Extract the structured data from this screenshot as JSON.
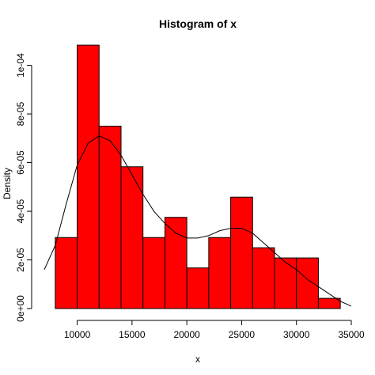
{
  "chart_data": {
    "type": "histogram",
    "title": "Histogram of x",
    "xlabel": "x",
    "ylabel": "Density",
    "xlim": [
      7000,
      35000
    ],
    "ylim": [
      0,
      0.000108
    ],
    "x_ticks": [
      10000,
      15000,
      20000,
      25000,
      30000,
      35000
    ],
    "x_tick_labels": [
      "10000",
      "15000",
      "20000",
      "25000",
      "30000",
      "35000"
    ],
    "y_ticks": [
      0,
      2e-05,
      4e-05,
      6e-05,
      8e-05,
      0.0001
    ],
    "y_tick_labels": [
      "0e+00",
      "2e-05",
      "4e-05",
      "6e-05",
      "8e-05",
      "1e-04"
    ],
    "bins": [
      {
        "start": 8000,
        "end": 10000,
        "density": 2.92e-05
      },
      {
        "start": 10000,
        "end": 12000,
        "density": 0.0001083
      },
      {
        "start": 12000,
        "end": 14000,
        "density": 7.5e-05
      },
      {
        "start": 14000,
        "end": 16000,
        "density": 5.83e-05
      },
      {
        "start": 16000,
        "end": 18000,
        "density": 2.92e-05
      },
      {
        "start": 18000,
        "end": 20000,
        "density": 3.75e-05
      },
      {
        "start": 20000,
        "end": 22000,
        "density": 1.67e-05
      },
      {
        "start": 22000,
        "end": 24000,
        "density": 2.92e-05
      },
      {
        "start": 24000,
        "end": 26000,
        "density": 4.58e-05
      },
      {
        "start": 26000,
        "end": 28000,
        "density": 2.5e-05
      },
      {
        "start": 28000,
        "end": 30000,
        "density": 2.08e-05
      },
      {
        "start": 30000,
        "end": 32000,
        "density": 2.08e-05
      },
      {
        "start": 32000,
        "end": 34000,
        "density": 4.2e-06
      }
    ],
    "bar_color": "#ff0000",
    "bar_border_color": "#000000",
    "density_curve": {
      "x": [
        7000,
        8000,
        9000,
        10000,
        11000,
        12000,
        13000,
        14000,
        15000,
        16000,
        17000,
        18000,
        19000,
        20000,
        21000,
        22000,
        23000,
        24000,
        25000,
        26000,
        27000,
        28000,
        29000,
        30000,
        31000,
        32000,
        33000,
        34000,
        35000
      ],
      "y": [
        1.6e-05,
        2.6e-05,
        4.3e-05,
        5.9e-05,
        6.8e-05,
        7.1e-05,
        6.9e-05,
        6.3e-05,
        5.5e-05,
        4.7e-05,
        4e-05,
        3.5e-05,
        3.1e-05,
        2.9e-05,
        2.9e-05,
        3e-05,
        3.2e-05,
        3.3e-05,
        3.3e-05,
        3.1e-05,
        2.7e-05,
        2.3e-05,
        1.9e-05,
        1.6e-05,
        1.2e-05,
        9e-06,
        6e-06,
        3e-06,
        1e-06
      ],
      "color": "#000000"
    },
    "grid": false
  }
}
